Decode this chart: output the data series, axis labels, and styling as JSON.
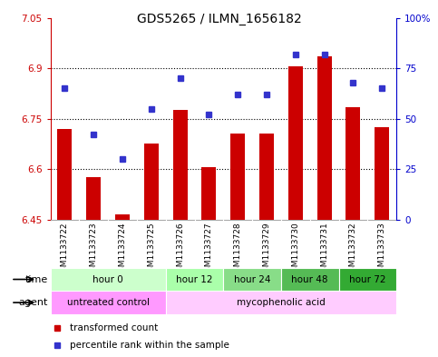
{
  "title": "GDS5265 / ILMN_1656182",
  "samples": [
    "GSM1133722",
    "GSM1133723",
    "GSM1133724",
    "GSM1133725",
    "GSM1133726",
    "GSM1133727",
    "GSM1133728",
    "GSM1133729",
    "GSM1133730",
    "GSM1133731",
    "GSM1133732",
    "GSM1133733"
  ],
  "bar_values": [
    6.72,
    6.575,
    6.465,
    6.675,
    6.775,
    6.605,
    6.705,
    6.705,
    6.905,
    6.935,
    6.785,
    6.725
  ],
  "percentile_values": [
    65,
    42,
    30,
    55,
    70,
    52,
    62,
    62,
    82,
    82,
    68,
    65
  ],
  "bar_base": 6.45,
  "ylim_left": [
    6.45,
    7.05
  ],
  "ylim_right": [
    0,
    100
  ],
  "left_yticks": [
    6.45,
    6.6,
    6.75,
    6.9,
    7.05
  ],
  "right_yticks": [
    0,
    25,
    50,
    75,
    100
  ],
  "right_yticklabels": [
    "0",
    "25",
    "50",
    "75",
    "100%"
  ],
  "bar_color": "#cc0000",
  "dot_color": "#3333cc",
  "time_groups": [
    {
      "label": "hour 0",
      "start": 0,
      "end": 4,
      "color": "#ccffcc"
    },
    {
      "label": "hour 12",
      "start": 4,
      "end": 6,
      "color": "#aaffaa"
    },
    {
      "label": "hour 24",
      "start": 6,
      "end": 8,
      "color": "#88dd88"
    },
    {
      "label": "hour 48",
      "start": 8,
      "end": 10,
      "color": "#55bb55"
    },
    {
      "label": "hour 72",
      "start": 10,
      "end": 12,
      "color": "#33aa33"
    }
  ],
  "agent_groups": [
    {
      "label": "untreated control",
      "start": 0,
      "end": 4,
      "color": "#ff99ff"
    },
    {
      "label": "mycophenolic acid",
      "start": 4,
      "end": 12,
      "color": "#ffccff"
    }
  ],
  "time_label": "time",
  "agent_label": "agent",
  "left_axis_color": "#cc0000",
  "right_axis_color": "#0000cc",
  "grid_color": "#000000",
  "sample_bg": "#c8c8c8",
  "bg_color": "#ffffff"
}
